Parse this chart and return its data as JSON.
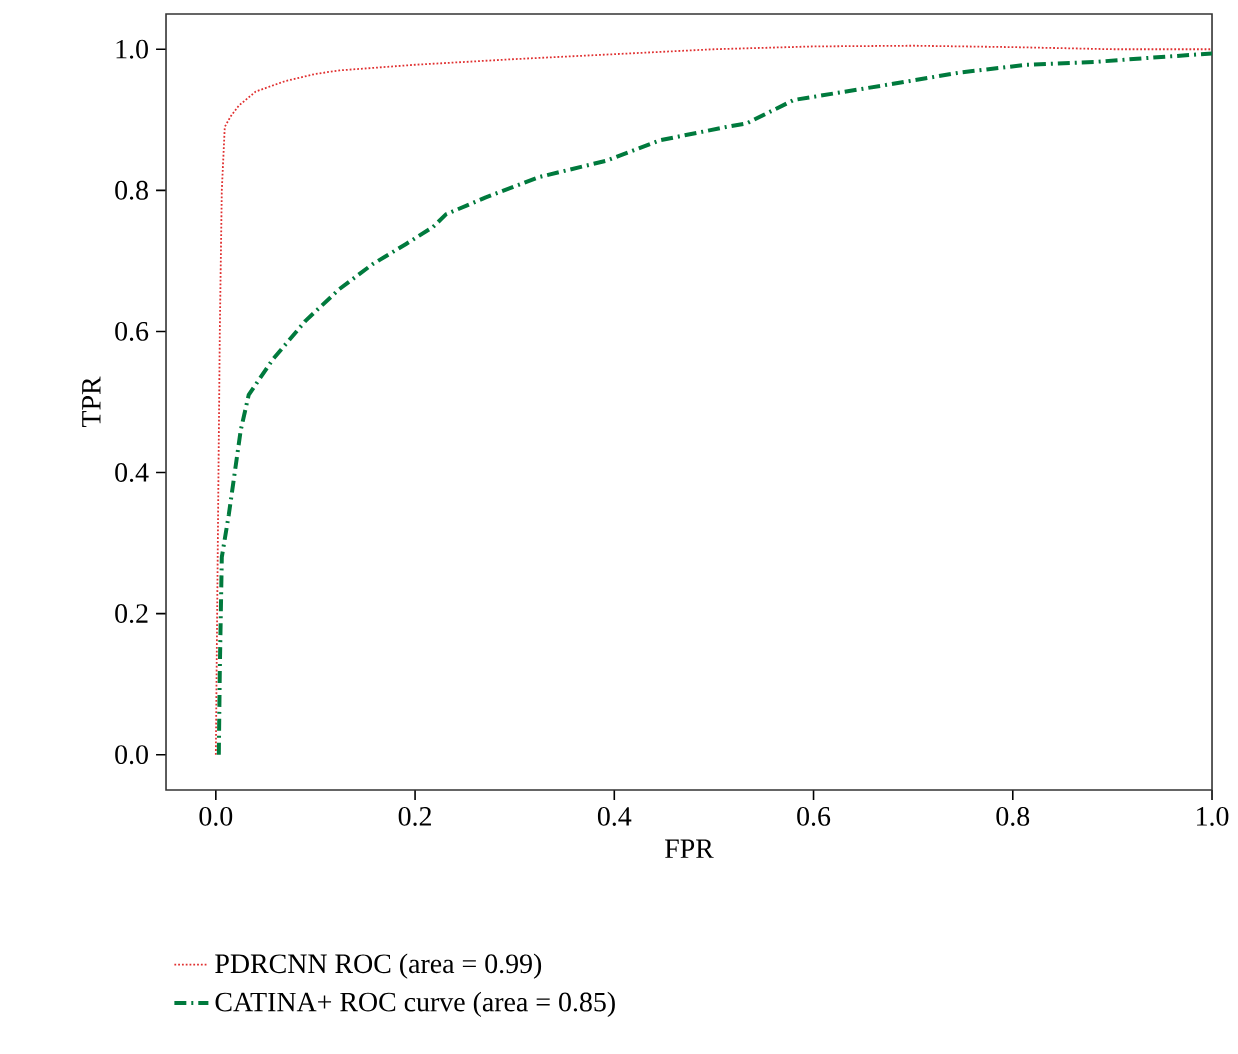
{
  "chart_data": {
    "type": "line",
    "xlabel": "FPR",
    "ylabel": "TPR",
    "xlim": [
      -0.05,
      1.0
    ],
    "ylim": [
      -0.05,
      1.05
    ],
    "xticks": [
      {
        "value": 0,
        "label": "0.0"
      },
      {
        "value": 0.2,
        "label": "0.2"
      },
      {
        "value": 0.4,
        "label": "0.4"
      },
      {
        "value": 0.6,
        "label": "0.6"
      },
      {
        "value": 0.8,
        "label": "0.8"
      },
      {
        "value": 1.0,
        "label": "1.0"
      }
    ],
    "yticks": [
      {
        "value": 0,
        "label": "0.0"
      },
      {
        "value": 0.2,
        "label": "0.2"
      },
      {
        "value": 0.4,
        "label": "0.4"
      },
      {
        "value": 0.6,
        "label": "0.6"
      },
      {
        "value": 0.8,
        "label": "0.8"
      },
      {
        "value": 1.0,
        "label": "1.0"
      }
    ],
    "legend": "bottom",
    "grid": false,
    "marker": "none",
    "series": [
      {
        "name": "PDRCNN ROC (area = 0.99)",
        "color": "#e03030",
        "line_style": "dotted",
        "x": [
          0,
          0.002,
          0.004,
          0.006,
          0.009,
          0.015,
          0.023,
          0.04,
          0.07,
          0.1,
          0.124,
          0.2,
          0.3,
          0.4,
          0.5,
          0.6,
          0.7,
          0.8,
          0.9,
          1.0
        ],
        "values": [
          0,
          0.3,
          0.6,
          0.8,
          0.89,
          0.905,
          0.92,
          0.94,
          0.955,
          0.965,
          0.97,
          0.978,
          0.986,
          0.993,
          1.0,
          1.004,
          1.005,
          1.003,
          1.0,
          1.0
        ]
      },
      {
        "name": "CATINA+ ROC curve (area = 0.85)",
        "color": "#007a3d",
        "line_style": "dashdot",
        "x": [
          0.003,
          0.004,
          0.006,
          0.013,
          0.02,
          0.025,
          0.033,
          0.057,
          0.09,
          0.124,
          0.157,
          0.191,
          0.218,
          0.231,
          0.271,
          0.325,
          0.392,
          0.446,
          0.513,
          0.533,
          0.58,
          0.68,
          0.747,
          0.814,
          0.882,
          0.949,
          1.0
        ],
        "values": [
          0,
          0.12,
          0.28,
          0.34,
          0.41,
          0.46,
          0.51,
          0.56,
          0.615,
          0.66,
          0.695,
          0.724,
          0.748,
          0.766,
          0.79,
          0.819,
          0.842,
          0.871,
          0.89,
          0.895,
          0.928,
          0.951,
          0.967,
          0.978,
          0.982,
          0.989,
          0.994
        ]
      }
    ]
  }
}
